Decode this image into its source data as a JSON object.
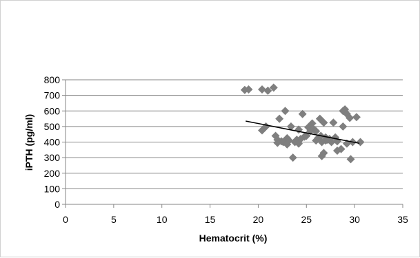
{
  "chart_data": {
    "type": "scatter",
    "title": "",
    "xlabel": "Hematocrit (%)",
    "ylabel": "iPTH (pg/ml)",
    "xlim": [
      0,
      35
    ],
    "ylim": [
      0,
      800
    ],
    "x_ticks": [
      "0",
      "5",
      "10",
      "15",
      "20",
      "25",
      "30",
      "35"
    ],
    "y_ticks": [
      "0",
      "100",
      "200",
      "300",
      "400",
      "500",
      "600",
      "700",
      "800"
    ],
    "grid": "horizontal",
    "legend": "none",
    "marker": "diamond",
    "marker_color": "#7f7f7f",
    "trendline_color": "#000000",
    "series": [
      {
        "points": [
          [
            18.6,
            735
          ],
          [
            19.0,
            738
          ],
          [
            20.4,
            738
          ],
          [
            21.0,
            730
          ],
          [
            21.6,
            750
          ],
          [
            20.4,
            475
          ],
          [
            20.8,
            500
          ],
          [
            21.8,
            440
          ],
          [
            22.0,
            415
          ],
          [
            22.2,
            550
          ],
          [
            22.4,
            405
          ],
          [
            22.6,
            400
          ],
          [
            22.8,
            600
          ],
          [
            23.0,
            425
          ],
          [
            23.2,
            410
          ],
          [
            23.4,
            500
          ],
          [
            23.6,
            300
          ],
          [
            23.8,
            400
          ],
          [
            24.0,
            415
          ],
          [
            24.2,
            390
          ],
          [
            24.4,
            420
          ],
          [
            24.6,
            580
          ],
          [
            24.8,
            435
          ],
          [
            25.2,
            495
          ],
          [
            25.4,
            470
          ],
          [
            25.6,
            520
          ],
          [
            25.8,
            480
          ],
          [
            26.0,
            470
          ],
          [
            26.0,
            410
          ],
          [
            26.2,
            425
          ],
          [
            26.4,
            550
          ],
          [
            26.5,
            440
          ],
          [
            26.6,
            310
          ],
          [
            26.8,
            330
          ],
          [
            26.8,
            525
          ],
          [
            27.0,
            410
          ],
          [
            27.0,
            430
          ],
          [
            27.2,
            415
          ],
          [
            27.4,
            420
          ],
          [
            27.8,
            525
          ],
          [
            28.0,
            430
          ],
          [
            28.2,
            345
          ],
          [
            28.6,
            355
          ],
          [
            28.8,
            500
          ],
          [
            28.8,
            600
          ],
          [
            29.0,
            610
          ],
          [
            29.2,
            390
          ],
          [
            29.2,
            580
          ],
          [
            29.5,
            555
          ],
          [
            29.6,
            290
          ],
          [
            29.8,
            400
          ],
          [
            30.2,
            560
          ],
          [
            30.6,
            400
          ],
          [
            22.0,
            395
          ],
          [
            23.0,
            385
          ],
          [
            26.6,
            400
          ],
          [
            27.6,
            400
          ],
          [
            28.2,
            405
          ],
          [
            25.0,
            440
          ],
          [
            24.2,
            480
          ]
        ]
      }
    ],
    "trendline": {
      "x": [
        18.7,
        30.5
      ],
      "y": [
        535,
        392
      ]
    }
  }
}
